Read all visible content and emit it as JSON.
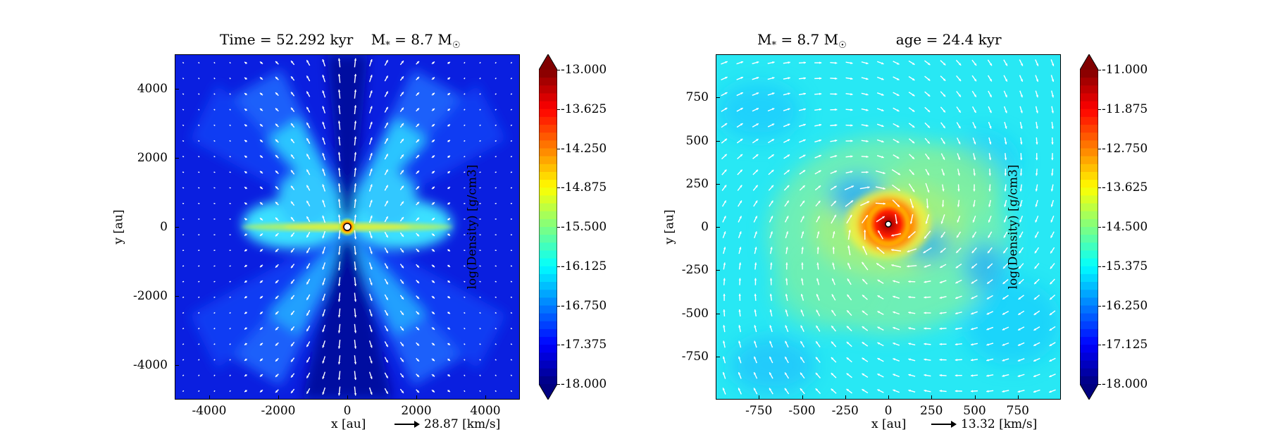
{
  "chart_data": [
    {
      "type": "heatmap",
      "title_parts": {
        "time": "Time = 52.292 kyr",
        "mass_prefix": "M",
        "mass_sub": "*",
        "mass_value": " = 8.7 M",
        "mass_unit_sub": "☉"
      },
      "xlabel": "x [au]",
      "ylabel": "y [au]",
      "xlim": [
        -5000,
        5000
      ],
      "ylim": [
        -5000,
        5000
      ],
      "xticks": [
        "-4000",
        "-2000",
        "0",
        "2000",
        "4000"
      ],
      "xtick_values": [
        -4000,
        -2000,
        0,
        2000,
        4000
      ],
      "yticks": [
        "4000",
        "2000",
        "0",
        "-2000",
        "-4000"
      ],
      "ytick_values": [
        4000,
        2000,
        0,
        -2000,
        -4000
      ],
      "colorbar": {
        "label": "log(Density) [g/cm3]",
        "min": -18.0,
        "max": -13.0,
        "ticks": [
          "-13.000",
          "-13.625",
          "-14.250",
          "-14.875",
          "-15.500",
          "-16.125",
          "-16.750",
          "-17.375",
          "-18.000"
        ]
      },
      "velocity_key": "28.87 [km/s]",
      "structure": "bipolar outflow cavity along y-axis with thin dense disk along x-axis; star at origin"
    },
    {
      "type": "heatmap",
      "title_parts": {
        "mass_prefix": "M",
        "mass_sub": "*",
        "mass_value": " = 8.7 M",
        "mass_unit_sub": "☉",
        "age": "age = 24.4 kyr"
      },
      "xlabel": "x [au]",
      "ylabel": "y [au]",
      "xlim": [
        -1000,
        1000
      ],
      "ylim": [
        -1000,
        1000
      ],
      "xticks": [
        "-750",
        "-500",
        "-250",
        "0",
        "250",
        "500",
        "750"
      ],
      "xtick_values": [
        -750,
        -500,
        -250,
        0,
        250,
        500,
        750
      ],
      "yticks": [
        "750",
        "500",
        "250",
        "0",
        "-250",
        "-500",
        "-750"
      ],
      "ytick_values": [
        750,
        500,
        250,
        0,
        -250,
        -500,
        -750
      ],
      "colorbar": {
        "label": "log(Density) [g/cm3]",
        "min": -18.0,
        "max": -11.0,
        "ticks": [
          "-11.000",
          "-11.875",
          "-12.750",
          "-13.625",
          "-14.500",
          "-15.375",
          "-16.250",
          "-17.125",
          "-18.000"
        ]
      },
      "velocity_key": "13.32 [km/s]",
      "structure": "rotating disk with spiral density; dense red core around star at origin"
    }
  ],
  "colors": {
    "jet_dark_blue": "#00008f",
    "jet_blue": "#0000ff",
    "jet_cyan": "#00ffff",
    "jet_yellow": "#ffff00",
    "jet_red": "#ff0000",
    "jet_dark_red": "#800000"
  }
}
